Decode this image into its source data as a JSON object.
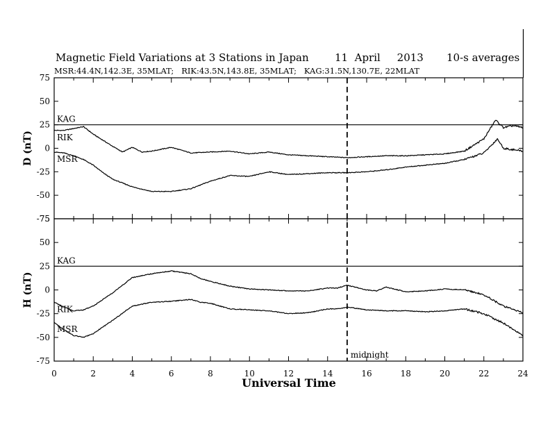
{
  "chart_data": {
    "type": "line",
    "title": "Magnetic Field Variations at 3 Stations in Japan",
    "date": "11  April     2013",
    "averaging": "10-s averages",
    "subtitle": "MSR:44.4N,142.3E, 35MLAT;   RIK:43.5N,143.8E, 35MLAT;   KAG:31.5N,130.7E, 22MLAT",
    "xlabel": "Universal Time",
    "xlim": [
      0,
      24
    ],
    "xticks": [
      0,
      2,
      4,
      6,
      8,
      10,
      12,
      14,
      16,
      18,
      20,
      22,
      24
    ],
    "annotation": {
      "x": 15,
      "label": "midnight"
    },
    "panels": [
      {
        "ylabel": "D (nT)",
        "ylim": [
          -75,
          75
        ],
        "yticks": [
          75,
          50,
          25,
          0,
          -25,
          -50,
          -75
        ],
        "series": [
          {
            "name": "KAG",
            "x": [
              0,
              1,
              2,
              4,
              6,
              8,
              10,
              12,
              14,
              16,
              18,
              20,
              21,
              22,
              22.6,
              23,
              24
            ],
            "values": [
              25,
              25,
              25,
              25,
              25,
              25,
              25,
              25,
              25,
              25,
              25,
              25,
              25,
              25,
              25,
              25,
              25
            ]
          },
          {
            "name": "RIK",
            "x": [
              0,
              0.5,
              1,
              1.5,
              2,
              3,
              3.5,
              4,
              4.5,
              5,
              5.5,
              6,
              7,
              8,
              9,
              10,
              11,
              12,
              13,
              14,
              15,
              16,
              17,
              18,
              19,
              20,
              21,
              22,
              22.6,
              23,
              23.5,
              24
            ],
            "values": [
              19,
              19,
              21,
              23,
              15,
              2,
              -4,
              1,
              -4,
              -3,
              -1,
              1,
              -5,
              -4,
              -3,
              -6,
              -4,
              -7,
              -8,
              -9,
              -10,
              -9,
              -8,
              -8,
              -7,
              -6,
              -3,
              10,
              30,
              22,
              24,
              22
            ]
          },
          {
            "name": "MSR",
            "x": [
              0,
              0.5,
              1,
              1.5,
              2,
              2.5,
              3,
              4,
              5,
              6,
              7,
              8,
              9,
              10,
              11,
              12,
              13,
              14,
              15,
              16,
              17,
              18,
              19,
              20,
              21,
              22,
              22.7,
              23,
              24
            ],
            "values": [
              -4,
              -5,
              -8,
              -12,
              -18,
              -26,
              -33,
              -41,
              -46,
              -46,
              -43,
              -35,
              -29,
              -30,
              -25,
              -28,
              -27,
              -26,
              -26,
              -25,
              -23,
              -20,
              -18,
              -16,
              -12,
              -5,
              10,
              0,
              -3
            ]
          }
        ]
      },
      {
        "ylabel": "H (nT)",
        "ylim": [
          -75,
          75
        ],
        "yticks": [
          75,
          50,
          25,
          0,
          -25,
          -50,
          -75
        ],
        "series": [
          {
            "name": "KAG",
            "x": [
              0,
              2,
              4,
              6,
              8,
              10,
              12,
              14,
              16,
              18,
              20,
              22,
              24
            ],
            "values": [
              25,
              25,
              25,
              25,
              25,
              25,
              25,
              25,
              25,
              25,
              25,
              25,
              25
            ]
          },
          {
            "name": "RIK",
            "x": [
              0,
              0.5,
              1,
              1.5,
              2,
              3,
              4,
              5,
              6,
              7,
              7.5,
              8,
              9,
              10,
              11,
              12,
              13,
              14,
              14.5,
              15,
              16,
              16.5,
              17,
              18,
              19,
              20,
              21,
              22,
              23,
              24
            ],
            "values": [
              -13,
              -18,
              -22,
              -21,
              -17,
              -3,
              13,
              17,
              20,
              17,
              12,
              9,
              4,
              1,
              0,
              -1,
              -1,
              2,
              2,
              5,
              0,
              -1,
              3,
              -2,
              -1,
              1,
              0,
              -5,
              -17,
              -24
            ]
          },
          {
            "name": "MSR",
            "x": [
              0,
              0.5,
              1,
              1.5,
              2,
              3,
              4,
              5,
              6,
              7,
              7.5,
              8,
              9,
              10,
              11,
              12,
              13,
              14,
              14.5,
              15,
              16,
              17,
              18,
              19,
              20,
              21,
              22,
              23,
              24
            ],
            "values": [
              -34,
              -42,
              -48,
              -50,
              -46,
              -32,
              -17,
              -13,
              -12,
              -10,
              -13,
              -14,
              -20,
              -21,
              -22,
              -25,
              -24,
              -20,
              -20,
              -18,
              -21,
              -22,
              -22,
              -23,
              -22,
              -20,
              -25,
              -35,
              -48
            ]
          }
        ]
      }
    ]
  }
}
